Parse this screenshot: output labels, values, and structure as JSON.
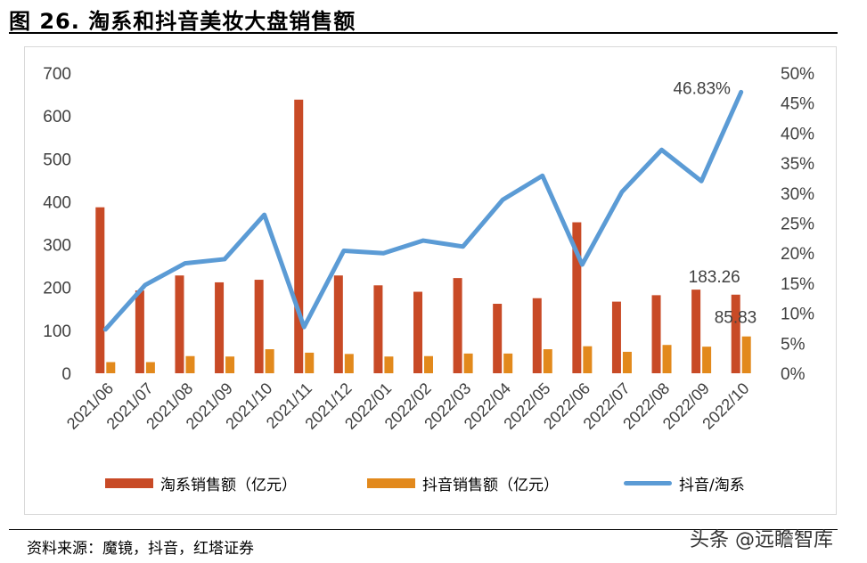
{
  "figure_title": "图 26. 淘系和抖音美妆大盘销售额",
  "source_text": "资料来源：魔镜，抖音，红塔证券",
  "watermark_text": "头条 @远瞻智库",
  "colors": {
    "taoxi": "#C84A26",
    "douyin": "#E2891C",
    "ratio": "#5B9BD5"
  },
  "chart_data": {
    "type": "bar",
    "categories": [
      "2021/06",
      "2021/07",
      "2021/08",
      "2021/09",
      "2021/10",
      "2021/11",
      "2021/12",
      "2022/01",
      "2022/02",
      "2022/03",
      "2022/04",
      "2022/05",
      "2022/06",
      "2022/07",
      "2022/08",
      "2022/09",
      "2022/10"
    ],
    "series": [
      {
        "name": "淘系销售额（亿元）",
        "type": "bar",
        "axis": "left",
        "values": [
          387,
          193,
          228,
          212,
          218,
          638,
          228,
          205,
          190,
          222,
          162,
          175,
          352,
          167,
          182,
          195,
          183.26
        ]
      },
      {
        "name": "抖音销售额（亿元）",
        "type": "bar",
        "axis": "left",
        "values": [
          26,
          26,
          40,
          39,
          56,
          48,
          45,
          39,
          40,
          46,
          46,
          56,
          63,
          50,
          66,
          62,
          85.83
        ]
      },
      {
        "name": "抖音/淘系",
        "type": "line",
        "axis": "right",
        "values": [
          7.3,
          14.7,
          18.3,
          19.0,
          26.4,
          7.7,
          20.4,
          20.0,
          22.1,
          21.1,
          28.9,
          32.9,
          18.1,
          30.2,
          37.2,
          32.0,
          46.83
        ]
      }
    ],
    "left_axis": {
      "min": 0,
      "max": 700,
      "ticks": [
        "0",
        "100",
        "200",
        "300",
        "400",
        "500",
        "600",
        "700"
      ]
    },
    "right_axis": {
      "min": 0,
      "max": 50,
      "ticks": [
        "0%",
        "5%",
        "10%",
        "15%",
        "20%",
        "25%",
        "30%",
        "35%",
        "40%",
        "45%",
        "50%"
      ]
    },
    "annotations": {
      "last_taoxi": "183.26",
      "last_douyin": "85.83",
      "last_ratio": "46.83%"
    },
    "grid": false,
    "legend_position": "bottom"
  }
}
